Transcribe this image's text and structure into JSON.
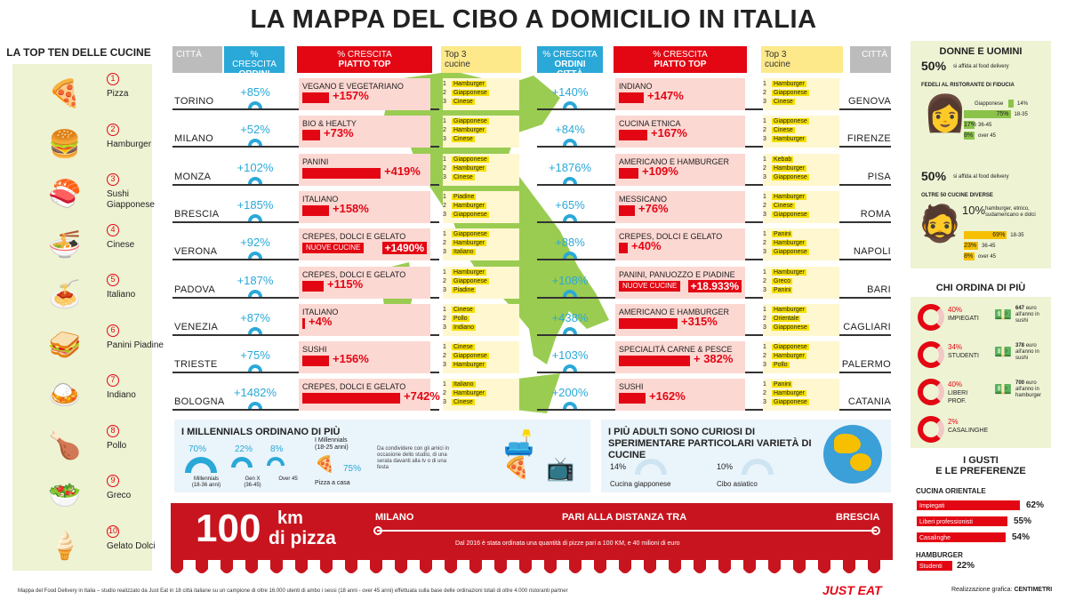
{
  "title": "LA MAPPA DEL CIBO A DOMICILIO IN ITALIA",
  "left_panel": {
    "title": "LA TOP TEN DELLE CUCINE",
    "items": [
      {
        "num": "1",
        "name": "Pizza",
        "icon": "🍕"
      },
      {
        "num": "2",
        "name": "Hamburger",
        "icon": "🍔"
      },
      {
        "num": "3",
        "name": "Sushi Giapponese",
        "icon": "🍣"
      },
      {
        "num": "4",
        "name": "Cinese",
        "icon": "🍜"
      },
      {
        "num": "5",
        "name": "Italiano",
        "icon": "🍝"
      },
      {
        "num": "6",
        "name": "Panini Piadine",
        "icon": "🥪"
      },
      {
        "num": "7",
        "name": "Indiano",
        "icon": "🍛"
      },
      {
        "num": "8",
        "name": "Pollo",
        "icon": "🍗"
      },
      {
        "num": "9",
        "name": "Greco",
        "icon": "🥗"
      },
      {
        "num": "10",
        "name": "Gelato Dolci",
        "icon": "🍦"
      }
    ]
  },
  "headers": {
    "city": "CITTÀ",
    "growth_1": "% CRESCITA",
    "growth_2": "ORDINI CITTÀ",
    "dish_1": "% CRESCITA",
    "dish_2": "PIATTO TOP",
    "top3_1": "Top 3",
    "top3_2": "cucine"
  },
  "left_rows": [
    {
      "city": "TORINO",
      "growth": "+85%",
      "dish": "VEGANO E VEGETARIANO",
      "pct": "+157%",
      "bar": 30,
      "top3": [
        "Hamburger",
        "Giapponese",
        "Cinese"
      ]
    },
    {
      "city": "MILANO",
      "growth": "+52%",
      "dish": "BIO & HEALTY",
      "pct": "+73%",
      "bar": 20,
      "top3": [
        "Giapponese",
        "Hamburger",
        "Cinese"
      ]
    },
    {
      "city": "MONZA",
      "growth": "+102%",
      "dish": "PANINI",
      "pct": "+419%",
      "bar": 88,
      "top3": [
        "Giapponese",
        "Hamburger",
        "Cinese"
      ]
    },
    {
      "city": "BRESCIA",
      "growth": "+185%",
      "dish": "ITALIANO",
      "pct": "+158%",
      "bar": 30,
      "top3": [
        "Piadine",
        "Hamburger",
        "Giapponese"
      ]
    },
    {
      "city": "VERONA",
      "growth": "+92%",
      "dish": "CREPES, DOLCI E GELATO",
      "pct": "+1490%",
      "nuove": "NUOVE CUCINE",
      "top3": [
        "Giapponese",
        "Hamburger",
        "Italiano"
      ]
    },
    {
      "city": "PADOVA",
      "growth": "+187%",
      "dish": "CREPES, DOLCI E GELATO",
      "pct": "+115%",
      "bar": 24,
      "top3": [
        "Hamburger",
        "Giapponese",
        "Piadine"
      ]
    },
    {
      "city": "VENEZIA",
      "growth": "+87%",
      "dish": "ITALIANO",
      "pct": "+4%",
      "bar": 3,
      "top3": [
        "Cinese",
        "Pollo",
        "Indiano"
      ]
    },
    {
      "city": "TRIESTE",
      "growth": "+75%",
      "dish": "SUSHI",
      "pct": "+156%",
      "bar": 30,
      "top3": [
        "Cinese",
        "Giapponese",
        "Hamburger"
      ]
    },
    {
      "city": "BOLOGNA",
      "growth": "+1482%",
      "dish": "CREPES, DOLCI E GELATO",
      "pct": "+742%",
      "bar": 110,
      "top3": [
        "Italiano",
        "Hamburger",
        "Cinese"
      ]
    }
  ],
  "right_rows": [
    {
      "city": "GENOVA",
      "growth": "+140%",
      "dish": "INDIANO",
      "pct": "+147%",
      "bar": 28,
      "top3": [
        "Hamburger",
        "Giapponese",
        "Cinese"
      ]
    },
    {
      "city": "FIRENZE",
      "growth": "+84%",
      "dish": "CUCINA ETNICA",
      "pct": "+167%",
      "bar": 32,
      "top3": [
        "Giapponese",
        "Cinese",
        "Hamburger"
      ]
    },
    {
      "city": "PISA",
      "growth": "+1876%",
      "dish": "AMERICANO E HAMBURGER",
      "pct": "+109%",
      "bar": 22,
      "top3": [
        "Kebab",
        "Hamburger",
        "Giapponese"
      ]
    },
    {
      "city": "ROMA",
      "growth": "+65%",
      "dish": "MESSICANO",
      "pct": "+76%",
      "bar": 18,
      "top3": [
        "Hamburger",
        "Cinese",
        "Giapponese"
      ]
    },
    {
      "city": "NAPOLI",
      "growth": "+88%",
      "dish": "CREPES, DOLCI E GELATO",
      "pct": "+40%",
      "bar": 10,
      "top3": [
        "Panini",
        "Hamburger",
        "Giapponese"
      ]
    },
    {
      "city": "BARI",
      "growth": "+108%",
      "dish": "PANINI, PANUOZZO E PIADINE",
      "pct": "+18.933%",
      "nuove": "NUOVE CUCINE",
      "top3": [
        "Hamburger",
        "Greco",
        "Panini"
      ]
    },
    {
      "city": "CAGLIARI",
      "growth": "+438%",
      "dish": "AMERICANO E HAMBURGER",
      "pct": "+315%",
      "bar": 66,
      "top3": [
        "Hamburger",
        "Orientale",
        "Giapponese"
      ]
    },
    {
      "city": "PALERMO",
      "growth": "+103%",
      "dish": "SPECIALITÀ CARNE & PESCE",
      "pct": "+ 382%",
      "bar": 80,
      "top3": [
        "Giapponese",
        "Hamburger",
        "Pollo"
      ]
    },
    {
      "city": "CATANIA",
      "growth": "+200%",
      "dish": "SUSHI",
      "pct": "+162%",
      "bar": 30,
      "top3": [
        "Panini",
        "Hamburger",
        "Giapponese"
      ]
    }
  ],
  "millennials": {
    "title": "I MILLENNIALS ORDINANO DI PIÙ",
    "groups": [
      {
        "pct": "70%",
        "label": "Millennials",
        "sub": "(18-36 anni)"
      },
      {
        "pct": "22%",
        "label": "Gen X",
        "sub": "(36-45)"
      },
      {
        "pct": "8%",
        "label": "Over 45",
        "sub": ""
      }
    ],
    "pizza_title": "I Millennials",
    "pizza_sub": "(18-25 anni)",
    "pizza_pct": "75%",
    "pizza_label": "Pizza a casa",
    "share_text": "Da condividere con gli amici in occasione dello studio, di una serata davanti alla tv o di una festa"
  },
  "adults": {
    "title": "I PIÙ ADULTI SONO CURIOSI DI SPERIMENTARE PARTICOLARI VARIETÀ DI CUCINE",
    "items": [
      {
        "pct": "14%",
        "label": "Cucina giapponese"
      },
      {
        "pct": "10%",
        "label": "Cibo asiatico"
      }
    ]
  },
  "banner": {
    "km": "100",
    "km_unit": "km",
    "pizza": "di pizza",
    "from": "MILANO",
    "middle": "PARI ALLA DISTANZA TRA",
    "to": "BRESCIA",
    "note": "Dal 2016 è stata ordinata una quantità di pizze pari a 100 KM, e 40 milioni di euro"
  },
  "donne": {
    "title": "DONNE E UOMINI",
    "w_pct": "50%",
    "w_txt": "si affida al food delivery",
    "w_head": "FEDELI AL RISTORANTE DI FIDUCIA",
    "w_bars": [
      {
        "label": "Giapponese",
        "val": "14%"
      },
      {
        "label": "18-35",
        "val": "75%"
      },
      {
        "label": "36-45",
        "val": "17%"
      },
      {
        "label": "over 45",
        "val": "8%"
      }
    ],
    "m_pct": "50%",
    "m_txt": "si affida al food delivery",
    "m_head": "OLTRE 50 CUCINE DIVERSE",
    "m_10": "10%",
    "m_10_txt": "hamburger, etnico, sudamericano e dolci",
    "m_bars": [
      {
        "label": "18-35",
        "val": "69%"
      },
      {
        "label": "36-45",
        "val": "23%"
      },
      {
        "label": "over 45",
        "val": "8%"
      }
    ]
  },
  "chi": {
    "title": "CHI ORDINA DI PIÙ",
    "items": [
      {
        "pct": "40%",
        "label": "IMPIEGATI",
        "amt": "647",
        "amt_txt": "euro all'anno in sushi"
      },
      {
        "pct": "34%",
        "label": "STUDENTI",
        "amt": "378",
        "amt_txt": "euro all'anno in sushi"
      },
      {
        "pct": "40%",
        "label": "LIBERI PROF.",
        "amt": "700",
        "amt_txt": "euro all'anno in hamburger"
      },
      {
        "pct": "2%",
        "label": "CASALINGHE",
        "amt": "",
        "amt_txt": ""
      }
    ]
  },
  "gusti": {
    "title1": "I GUSTI",
    "title2": "E LE PREFERENZE",
    "or_title": "CUCINA ORIENTALE",
    "or_items": [
      {
        "label": "Impiegati",
        "val": "62%"
      },
      {
        "label": "Liberi professionisti",
        "val": "55%"
      },
      {
        "label": "Casalinghe",
        "val": "54%"
      }
    ],
    "ham_title": "HAMBURGER",
    "ham_items": [
      {
        "label": "Studenti",
        "val": "22%"
      }
    ]
  },
  "footer": {
    "note": "Mappa del Food Delivery in Italia – studio realizzato da Just Eat in 18 città italiane su un campione di oltre 16.000 utenti di ambo i sessi (18 anni - over 45 anni) effettuata sulla base delle ordinazioni totali di oltre 4.000 ristoranti partner",
    "brand": "JUST EAT",
    "credit": "Realizzazione grafica:",
    "credit_brand": "CENTIMETRI"
  },
  "colors": {
    "red": "#e30613",
    "blue": "#2aa8d8",
    "yellow": "#f6e000",
    "green": "#8bc34a"
  }
}
